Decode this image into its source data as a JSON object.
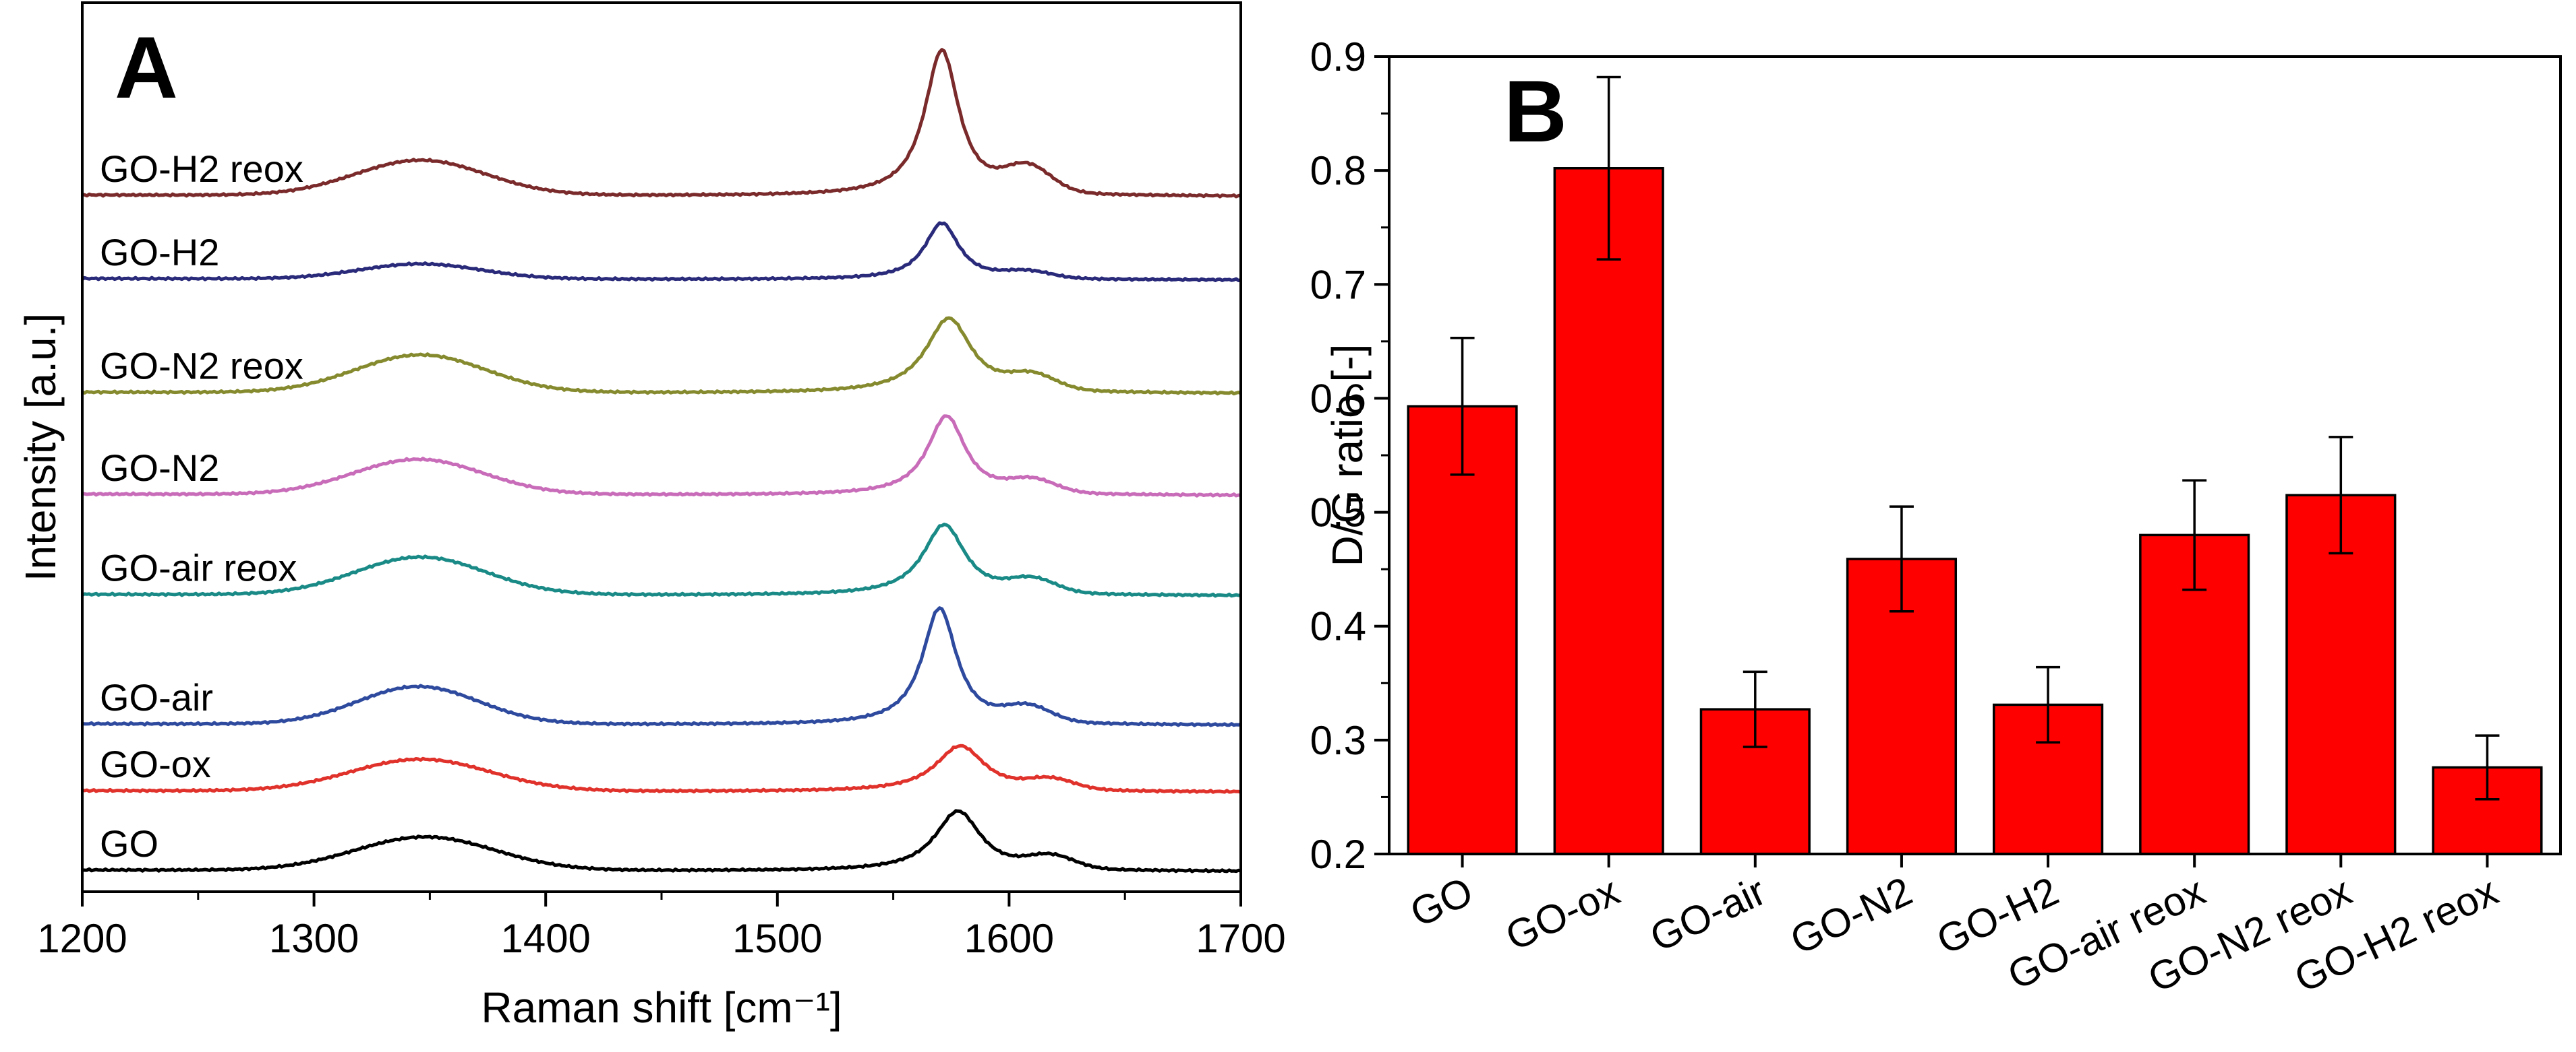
{
  "chart_data": [
    {
      "panel": "A",
      "type": "line",
      "xlabel": "Raman shift [cm⁻¹]",
      "ylabel": "Intensity [a.u.]",
      "xlim": [
        1200,
        1700
      ],
      "xticks": [
        1200,
        1300,
        1400,
        1500,
        1600,
        1700
      ],
      "ylim": [
        0,
        10.4
      ],
      "grid": false,
      "series": [
        {
          "name": "GO",
          "color": "#000000",
          "baseline": 0.0,
          "d_center": 1348,
          "d_height": 0.4,
          "d_width": 30,
          "g_center": 1578,
          "g_height": 0.72,
          "g_width": 12,
          "d2_center": 1618,
          "d2_height": 0.15
        },
        {
          "name": "GO-ox",
          "color": "#e0312b",
          "baseline": 0.95,
          "d_center": 1346,
          "d_height": 0.38,
          "d_width": 30,
          "g_center": 1579,
          "g_height": 0.55,
          "g_width": 13,
          "d2_center": 1618,
          "d2_height": 0.12
        },
        {
          "name": "GO-air",
          "color": "#2e4a9e",
          "baseline": 1.75,
          "d_center": 1345,
          "d_height": 0.45,
          "d_width": 26,
          "g_center": 1570,
          "g_height": 1.4,
          "g_width": 9,
          "d2_center": 1608,
          "d2_height": 0.18
        },
        {
          "name": "GO-air reox",
          "color": "#1a8a87",
          "baseline": 3.3,
          "d_center": 1346,
          "d_height": 0.45,
          "d_width": 28,
          "g_center": 1572,
          "g_height": 0.85,
          "g_width": 11,
          "d2_center": 1610,
          "d2_height": 0.16
        },
        {
          "name": "GO-N2",
          "color": "#c86bb8",
          "baseline": 4.5,
          "d_center": 1345,
          "d_height": 0.42,
          "d_width": 28,
          "g_center": 1573,
          "g_height": 0.95,
          "g_width": 10,
          "d2_center": 1610,
          "d2_height": 0.15
        },
        {
          "name": "GO-N2 reox",
          "color": "#858a2e",
          "baseline": 5.72,
          "d_center": 1346,
          "d_height": 0.45,
          "d_width": 28,
          "g_center": 1574,
          "g_height": 0.9,
          "g_width": 12,
          "d2_center": 1610,
          "d2_height": 0.17
        },
        {
          "name": "GO-H2",
          "color": "#2a2a7a",
          "baseline": 7.08,
          "d_center": 1346,
          "d_height": 0.18,
          "d_width": 26,
          "g_center": 1571,
          "g_height": 0.68,
          "g_width": 9,
          "d2_center": 1608,
          "d2_height": 0.08
        },
        {
          "name": "GO-H2 reox",
          "color": "#7a2a2a",
          "baseline": 8.08,
          "d_center": 1346,
          "d_height": 0.42,
          "d_width": 28,
          "g_center": 1571,
          "g_height": 1.75,
          "g_width": 9,
          "d2_center": 1608,
          "d2_height": 0.3
        }
      ]
    },
    {
      "panel": "B",
      "type": "bar",
      "xlabel": "",
      "ylabel": "D/G ratio [-]",
      "ylim": [
        0.2,
        0.9
      ],
      "yticks": [
        0.2,
        0.3,
        0.4,
        0.5,
        0.6,
        0.7,
        0.8,
        0.9
      ],
      "grid": false,
      "bar_color": "#ff0000",
      "categories": [
        "GO",
        "GO-ox",
        "GO-air",
        "GO-N2",
        "GO-H2",
        "GO-air reox",
        "GO-N2 reox",
        "GO-H2 reox"
      ],
      "values": [
        0.593,
        0.802,
        0.327,
        0.459,
        0.331,
        0.48,
        0.515,
        0.276
      ],
      "errors": [
        0.06,
        0.08,
        0.033,
        0.046,
        0.033,
        0.048,
        0.051,
        0.028
      ]
    }
  ]
}
